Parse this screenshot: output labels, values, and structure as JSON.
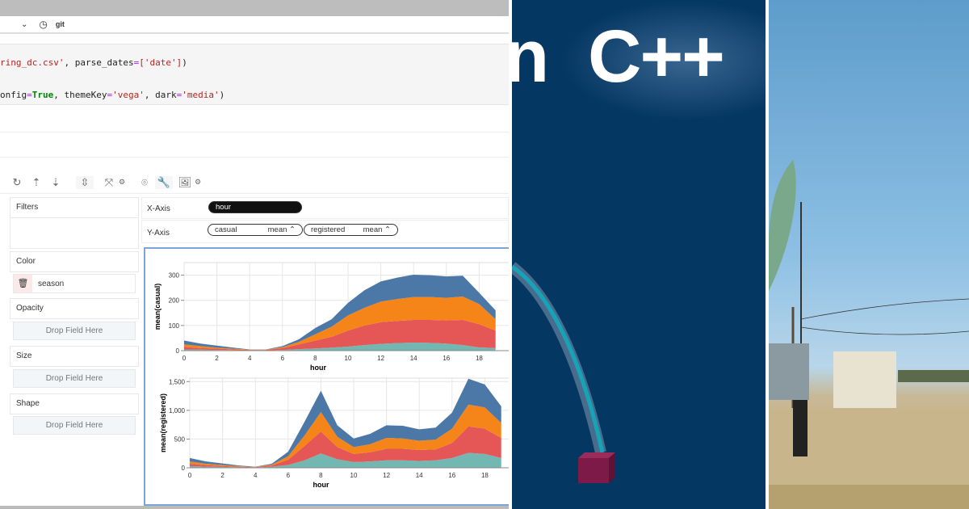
{
  "notebook": {
    "kernel_label": "git",
    "code_line1": [
      "ring_dc.csv'",
      ", parse_dates",
      "=",
      "['date']",
      ")"
    ],
    "code_line2": [
      "onfig",
      "=",
      "True",
      ", themeKey",
      "=",
      "'vega'",
      ", dark",
      "=",
      "'media'",
      ")"
    ]
  },
  "walker": {
    "toolbar_icons": [
      "refresh-icon",
      "sort-ascending-icon",
      "sort-descending-icon",
      "stack-toggle-icon",
      "resize-icon",
      "gear-icon",
      "brush-icon",
      "wrench-icon",
      "image-export-icon",
      "gear-icon"
    ],
    "filters_label": "Filters",
    "color_label": "Color",
    "color_field": "season",
    "opacity_label": "Opacity",
    "size_label": "Size",
    "shape_label": "Shape",
    "drop_placeholder": "Drop Field Here",
    "x_axis_label": "X-Axis",
    "x_field": "hour",
    "y_axis_label": "Y-Axis",
    "y_fields": [
      {
        "name": "casual",
        "agg": "mean"
      },
      {
        "name": "registered",
        "agg": "mean"
      }
    ]
  },
  "colors": {
    "accent": "#4c78a8",
    "series": [
      "#4c78a8",
      "#f58518",
      "#e45756",
      "#72b7b2"
    ],
    "cpp_bg": "#053763"
  },
  "chart_data": [
    {
      "type": "area",
      "stacked": true,
      "xlabel": "hour",
      "ylabel": "mean(casual)",
      "xlim": [
        0,
        20
      ],
      "ylim": [
        0,
        350
      ],
      "xticks": [
        0,
        2,
        4,
        6,
        8,
        10,
        12,
        14,
        16,
        18
      ],
      "yticks": [
        0,
        100,
        200,
        300
      ],
      "ytick_labels": [
        "0",
        "100",
        "200",
        "300"
      ],
      "grid": true,
      "x": [
        0,
        1,
        2,
        3,
        4,
        5,
        6,
        7,
        8,
        9,
        10,
        11,
        12,
        13,
        14,
        15,
        16,
        17,
        18,
        19
      ],
      "series": [
        {
          "color": "#72b7b2",
          "values": [
            5,
            4,
            3,
            2,
            1,
            1,
            3,
            6,
            9,
            12,
            16,
            22,
            27,
            30,
            32,
            31,
            28,
            22,
            13,
            10
          ]
        },
        {
          "color": "#e45756",
          "values": [
            10,
            6,
            5,
            3,
            2,
            2,
            7,
            19,
            31,
            43,
            64,
            78,
            86,
            88,
            90,
            91,
            92,
            100,
            92,
            70
          ]
        },
        {
          "color": "#f58518",
          "values": [
            10,
            8,
            4,
            3,
            1,
            1,
            4,
            10,
            25,
            40,
            60,
            70,
            82,
            87,
            91,
            91,
            90,
            93,
            80,
            45
          ]
        },
        {
          "color": "#4c78a8",
          "values": [
            15,
            10,
            8,
            4,
            1,
            1,
            4,
            10,
            25,
            30,
            50,
            70,
            80,
            85,
            89,
            87,
            85,
            83,
            45,
            35
          ]
        }
      ]
    },
    {
      "type": "area",
      "stacked": true,
      "xlabel": "hour",
      "ylabel": "mean(registered)",
      "xlim": [
        0,
        20
      ],
      "ylim": [
        0,
        1560
      ],
      "xticks": [
        0,
        2,
        4,
        6,
        8,
        10,
        12,
        14,
        16,
        18
      ],
      "yticks": [
        0,
        500,
        1000,
        1500
      ],
      "ytick_labels": [
        "0",
        "500",
        "1,000",
        "1,500"
      ],
      "grid": true,
      "x": [
        0,
        1,
        2,
        3,
        4,
        5,
        6,
        7,
        8,
        9,
        10,
        11,
        12,
        13,
        14,
        15,
        16,
        17,
        18,
        19
      ],
      "series": [
        {
          "color": "#72b7b2",
          "values": [
            30,
            20,
            15,
            8,
            5,
            20,
            50,
            130,
            250,
            150,
            100,
            110,
            130,
            130,
            120,
            130,
            170,
            260,
            240,
            170
          ]
        },
        {
          "color": "#e45756",
          "values": [
            40,
            25,
            17,
            10,
            5,
            20,
            90,
            250,
            380,
            210,
            140,
            160,
            200,
            200,
            190,
            190,
            260,
            460,
            440,
            350
          ]
        },
        {
          "color": "#f58518",
          "values": [
            40,
            25,
            18,
            10,
            5,
            15,
            60,
            180,
            340,
            180,
            120,
            140,
            190,
            180,
            160,
            170,
            250,
            380,
            370,
            260
          ]
        },
        {
          "color": "#4c78a8",
          "values": [
            60,
            40,
            25,
            12,
            5,
            15,
            80,
            240,
            370,
            200,
            150,
            180,
            220,
            220,
            200,
            210,
            280,
            450,
            400,
            290
          ]
        }
      ]
    }
  ],
  "cpp_graphic": {
    "partial_letter": "n",
    "title": "C++"
  }
}
